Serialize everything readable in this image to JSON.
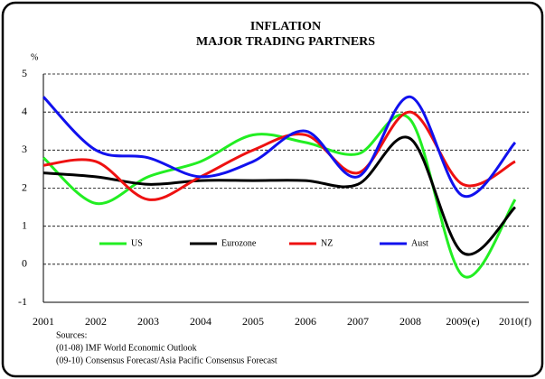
{
  "chart_data": {
    "type": "line",
    "title": [
      "INFLATION",
      "MAJOR TRADING PARTNERS"
    ],
    "y_label": "%",
    "categories": [
      "2001",
      "2002",
      "2003",
      "2004",
      "2005",
      "2006",
      "2007",
      "2008",
      "2009(e)",
      "2010(f)"
    ],
    "series": [
      {
        "name": "US",
        "color": "#22ee22",
        "values": [
          2.8,
          1.6,
          2.3,
          2.7,
          3.4,
          3.2,
          2.9,
          3.8,
          -0.3,
          1.7
        ]
      },
      {
        "name": "Eurozone",
        "color": "#000000",
        "values": [
          2.4,
          2.3,
          2.1,
          2.2,
          2.2,
          2.2,
          2.1,
          3.3,
          0.3,
          1.5
        ]
      },
      {
        "name": "NZ",
        "color": "#ee1111",
        "values": [
          2.6,
          2.7,
          1.7,
          2.3,
          3.0,
          3.4,
          2.4,
          4.0,
          2.1,
          2.7
        ]
      },
      {
        "name": "Aust",
        "color": "#1111ee",
        "values": [
          4.4,
          3.0,
          2.8,
          2.3,
          2.7,
          3.5,
          2.3,
          4.4,
          1.8,
          3.2
        ]
      }
    ],
    "ylim": [
      -1,
      5
    ],
    "yticks": [
      -1,
      0,
      1,
      2,
      3,
      4,
      5
    ],
    "grid": true,
    "smooth": true,
    "legend": "bottom",
    "sources": [
      "Sources:",
      "(01-08) IMF World Economic Outlook",
      "(09-10) Consensus Forecast/Asia Pacific Consensus Forecast"
    ]
  }
}
